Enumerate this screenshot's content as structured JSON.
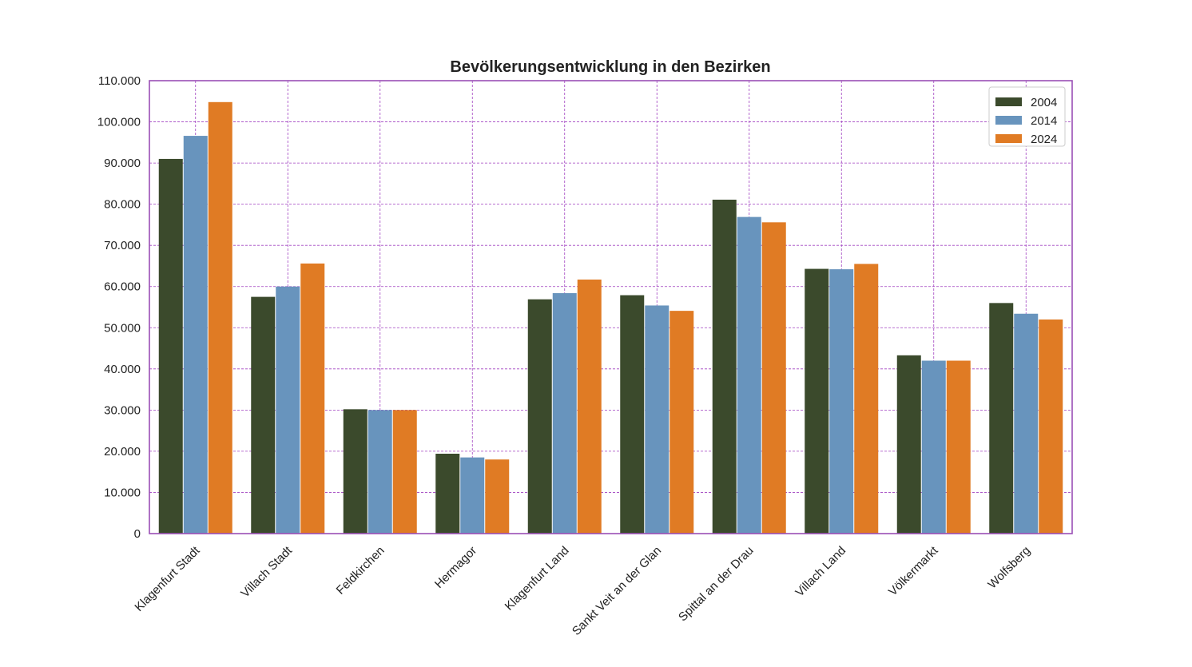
{
  "chart_data": {
    "type": "bar",
    "title": "Bevölkerungsentwicklung in den Bezirken",
    "xlabel": "",
    "ylabel": "",
    "categories": [
      "Klagenfurt Stadt",
      "Villach Stadt",
      "Feldkirchen",
      "Hermagor",
      "Klagenfurt Land",
      "Sankt Veit an der Glan",
      "Spittal an der Drau",
      "Villach Land",
      "Völkermarkt",
      "Wolfsberg"
    ],
    "series": [
      {
        "name": "2004",
        "color": "#3b4a2c",
        "values": [
          91000,
          57500,
          30200,
          19400,
          56900,
          57900,
          81100,
          64300,
          43300,
          56000
        ]
      },
      {
        "name": "2014",
        "color": "#6894bd",
        "values": [
          96600,
          60000,
          30000,
          18500,
          58400,
          55400,
          76900,
          64200,
          42000,
          53400
        ]
      },
      {
        "name": "2024",
        "color": "#e07b24",
        "values": [
          104800,
          65600,
          30000,
          18000,
          61700,
          54100,
          75600,
          65500,
          42000,
          52000
        ]
      }
    ],
    "ylim": [
      0,
      110000
    ],
    "yticks": [
      0,
      10000,
      20000,
      30000,
      40000,
      50000,
      60000,
      70000,
      80000,
      90000,
      100000,
      110000
    ],
    "ytick_labels": [
      "0",
      "10.000",
      "20.000",
      "30.000",
      "40.000",
      "50.000",
      "60.000",
      "70.000",
      "80.000",
      "90.000",
      "100.000",
      "110.000"
    ],
    "grid": true,
    "grid_color": "#a040c0",
    "frame_color": "#9a4fb5",
    "legend": "top-right"
  }
}
